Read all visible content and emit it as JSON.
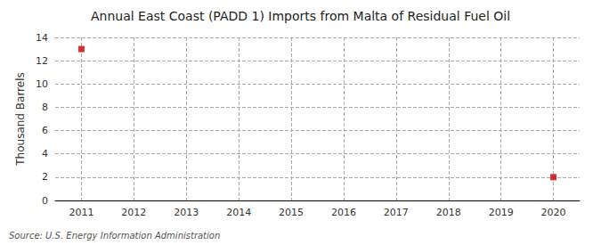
{
  "chart_data": {
    "type": "scatter",
    "title": "Annual East Coast (PADD 1) Imports from Malta of Residual Fuel Oil",
    "ylabel": "Thousand Barrels",
    "source": "Source: U.S. Energy Information Administration",
    "x": [
      2011,
      2020
    ],
    "values": [
      13,
      2
    ],
    "color": "#cc0000",
    "marker": "square",
    "xlim": [
      2010.5,
      2020.5
    ],
    "xticks": [
      2011,
      2012,
      2013,
      2014,
      2015,
      2016,
      2017,
      2018,
      2019,
      2020
    ],
    "ylim": [
      0,
      14
    ],
    "yticks": [
      0,
      2,
      4,
      6,
      8,
      10,
      12,
      14
    ],
    "grid": true
  }
}
